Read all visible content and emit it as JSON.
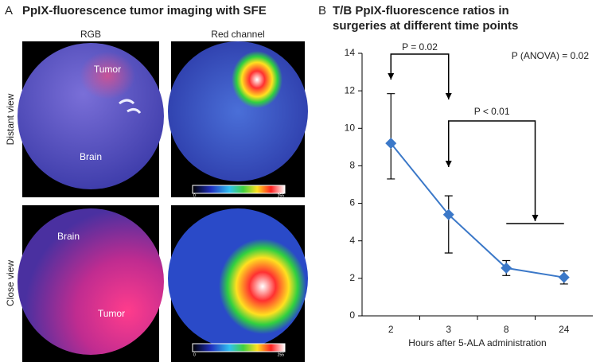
{
  "panel_a": {
    "label": "A",
    "title": "PpIX-fluorescence tumor imaging with SFE",
    "columns": [
      "RGB",
      "Red channel"
    ],
    "rows": [
      "Distant view",
      "Close view"
    ],
    "image_labels": [
      "Tumor",
      "Brain",
      "Brain",
      "Tumor"
    ],
    "colorbar_labels": [
      "0",
      "255"
    ]
  },
  "chart_data": {
    "type": "line",
    "panel_label": "B",
    "title": [
      "T/B PpIX-fluorescence ratios in",
      "surgeries at different time points"
    ],
    "x_label": "Hours after 5-ALA administration",
    "categories": [
      "2",
      "3",
      "8",
      "24"
    ],
    "series": [
      {
        "color": "#3b78c8",
        "values": [
          9.2,
          5.4,
          2.55,
          2.05
        ],
        "error_low": [
          1.9,
          2.05,
          0.4,
          0.35
        ],
        "error_high": [
          2.65,
          1.0,
          0.4,
          0.35
        ]
      }
    ],
    "ylim": [
      0,
      14
    ],
    "yticks": [
      0,
      2,
      4,
      6,
      8,
      10,
      12,
      14
    ],
    "annotations": [
      "P = 0.02",
      "P < 0.01",
      "P (ANOVA) = 0.02"
    ]
  }
}
